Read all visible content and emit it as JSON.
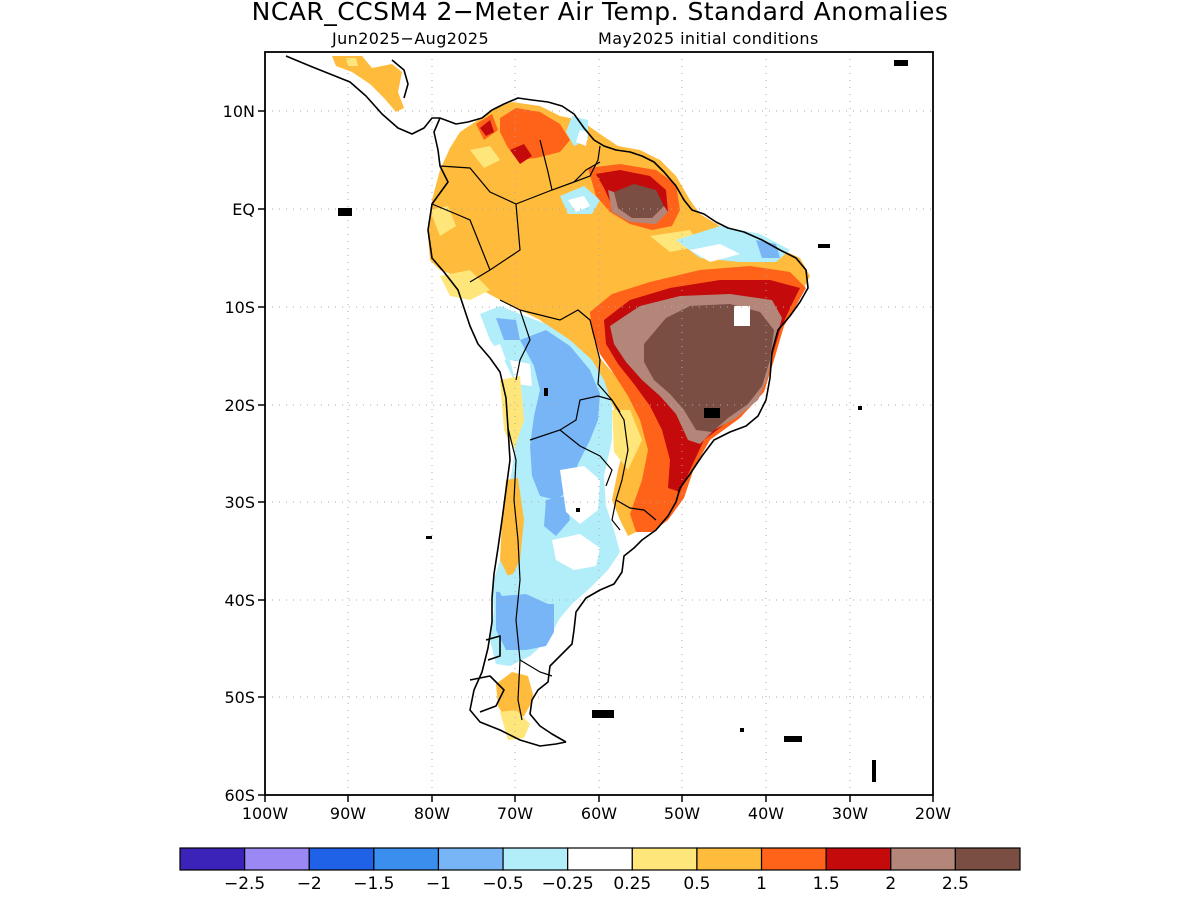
{
  "title": "NCAR_CCSM4 2−Meter Air Temp. Standard Anomalies",
  "subtitle_period": "Jun2025−Aug2025",
  "subtitle_init": "May2025 initial conditions",
  "lat_labels": [
    "10N",
    "EQ",
    "10S",
    "20S",
    "30S",
    "40S",
    "50S",
    "60S"
  ],
  "lon_labels": [
    "100W",
    "90W",
    "80W",
    "70W",
    "60W",
    "50W",
    "40W",
    "30W",
    "20W"
  ],
  "legend": {
    "colors": [
      "#3b22b8",
      "#9b88f5",
      "#1f62e8",
      "#3a8fee",
      "#78b5f7",
      "#b2eefa",
      "#ffffff",
      "#ffe67a",
      "#ffbb3c",
      "#ff6319",
      "#c40a0a",
      "#b38679",
      "#7a4e43"
    ],
    "labels": [
      "−2.5",
      "−2",
      "−1.5",
      "−1",
      "−0.5",
      "−0.25",
      "0.25",
      "0.5",
      "1",
      "1.5",
      "2",
      "2.5"
    ]
  },
  "map": {
    "region": "South America",
    "lat_range": [
      "60S",
      "15N"
    ],
    "lon_range": [
      "100W",
      "20W"
    ],
    "gridlines": "dotted",
    "anomaly_highlights": [
      {
        "area": "eastern Brazil",
        "level": "> 2.5"
      },
      {
        "area": "northeastern Brazil / Amapa",
        "level": "> 2.5"
      },
      {
        "area": "Venezuela / Colombia coast",
        "level": "1 to 2"
      },
      {
        "area": "Amazon basin",
        "level": "0.5 to 1"
      },
      {
        "area": "Andes / Bolivia / Paraguay",
        "level": "-0.5 to -1"
      },
      {
        "area": "Argentina",
        "level": "-0.25 to -1"
      },
      {
        "area": "southern Patagonia",
        "level": "0.25 to 1"
      }
    ]
  }
}
